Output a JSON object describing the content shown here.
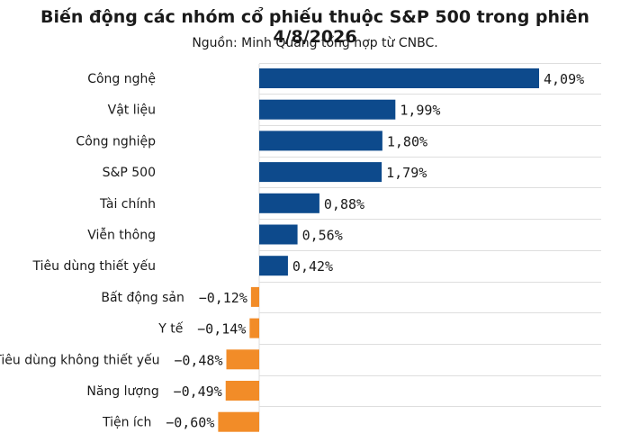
{
  "title": "Biến động các nhóm cổ phiếu thuộc S&P 500 trong phiên 4/8/2026",
  "subtitle": "Nguồn: Minh Quang tổng hợp từ CNBC.",
  "colors": {
    "positive": "#0d4a8c",
    "negative": "#f28c28",
    "grid": "#dedede"
  },
  "chart_data": {
    "type": "bar",
    "orientation": "horizontal",
    "title": "Biến động các nhóm cổ phiếu thuộc S&P 500 trong phiên 4/8/2026",
    "subtitle": "Nguồn: Minh Quang tổng hợp từ CNBC.",
    "categories": [
      "Công nghệ",
      "Vật liệu",
      "Công nghiệp",
      "S&P 500",
      "Tài chính",
      "Viễn thông",
      "Tiêu dùng thiết yếu",
      "Bất động sản",
      "Y tế",
      "Tiêu dùng không thiết yếu",
      "Năng lượng",
      "Tiện ích"
    ],
    "values": [
      4.09,
      1.99,
      1.8,
      1.79,
      0.88,
      0.56,
      0.42,
      -0.12,
      -0.14,
      -0.48,
      -0.49,
      -0.6
    ],
    "value_labels": [
      "4,09%",
      "1,99%",
      "1,80%",
      "1,79%",
      "0,88%",
      "0,56%",
      "0,42%",
      "−0,12%",
      "−0,14%",
      "−0,48%",
      "−0,49%",
      "−0,60%"
    ],
    "xlim": [
      -0.6,
      4.09
    ],
    "grid": true
  }
}
